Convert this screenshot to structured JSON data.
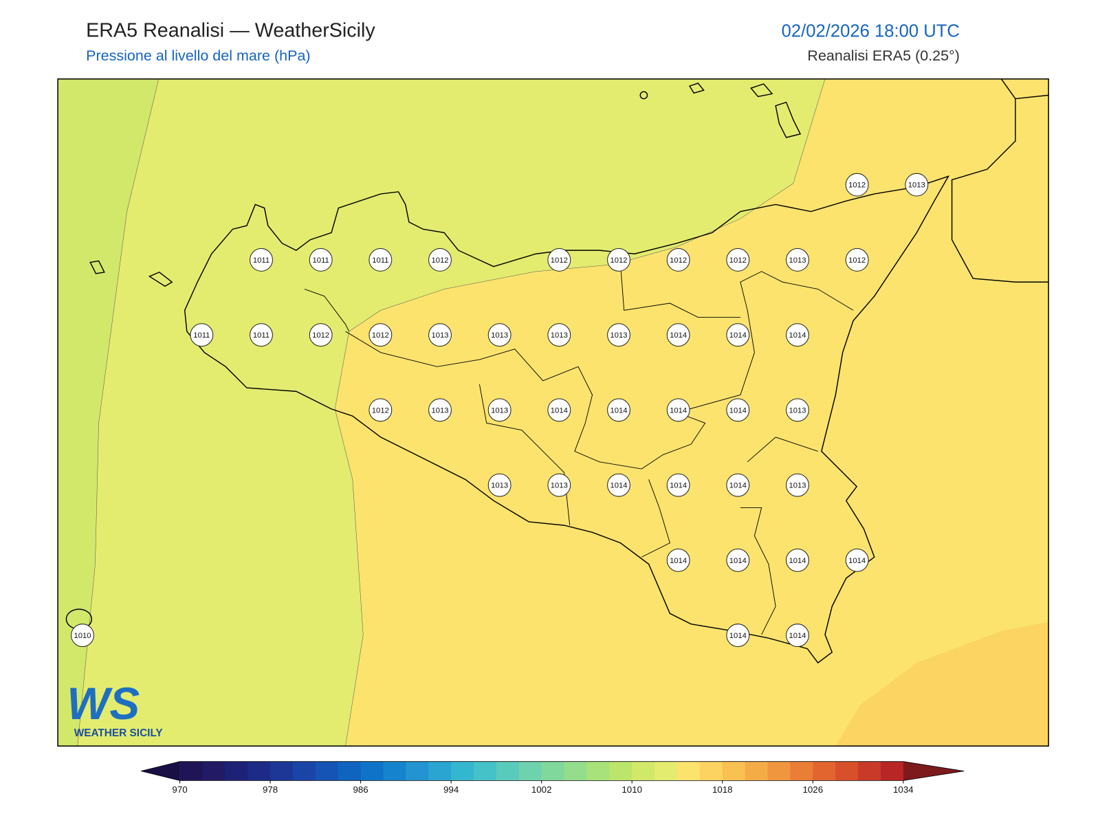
{
  "header": {
    "title": "ERA5 Reanalisi — WeatherSicily",
    "subtitle": "Pressione al livello del mare (hPa)",
    "datetime": "02/02/2026 18:00 UTC",
    "source": "Reanalisi ERA5 (0.25°)"
  },
  "logo": {
    "mark": "WS",
    "text": "WEATHER SICILY"
  },
  "stations": {
    "rows": [
      [
        null,
        null,
        null,
        null,
        null,
        null,
        null,
        null,
        null,
        null,
        null,
        null,
        null,
        1012,
        1013
      ],
      [
        null,
        null,
        null,
        1011,
        1011,
        1011,
        1012,
        null,
        1012,
        1012,
        1012,
        1012,
        1013,
        1012,
        null
      ],
      [
        null,
        null,
        1011,
        1011,
        1012,
        1012,
        1013,
        1013,
        1013,
        1013,
        1014,
        1014,
        1014,
        null,
        null
      ],
      [
        null,
        null,
        null,
        null,
        null,
        1012,
        1013,
        1013,
        1014,
        1014,
        1014,
        1014,
        1013,
        null,
        null
      ],
      [
        null,
        null,
        null,
        null,
        null,
        null,
        null,
        1013,
        1013,
        1014,
        1014,
        1014,
        1013,
        null,
        null
      ],
      [
        null,
        null,
        null,
        null,
        null,
        null,
        null,
        null,
        null,
        null,
        1014,
        1014,
        1014,
        1014,
        null
      ],
      [
        1010,
        null,
        null,
        null,
        null,
        null,
        null,
        null,
        null,
        null,
        null,
        1014,
        1014,
        null,
        null
      ]
    ]
  },
  "colorbar": {
    "vmin": 970,
    "vmax": 1034,
    "ticks": [
      970,
      978,
      986,
      994,
      1002,
      1010,
      1018,
      1026,
      1034
    ],
    "under": "#1a0f45",
    "over": "#7d1a1c",
    "colors": [
      "#1f1456",
      "#231a66",
      "#1e2276",
      "#1d2b86",
      "#1c3796",
      "#1a45a6",
      "#1553b4",
      "#1163c0",
      "#0f74c8",
      "#1584cc",
      "#2394cf",
      "#2aa5d2",
      "#35b6cf",
      "#45c2c8",
      "#58cbbc",
      "#6ed2ad",
      "#80d89c",
      "#94dd8b",
      "#a8e27a",
      "#bce56c",
      "#d1e868",
      "#e3ec6f",
      "#fbe36e",
      "#fcd361",
      "#f8c152",
      "#f4ac47",
      "#f0963e",
      "#ea7e36",
      "#e2652f",
      "#d8502a",
      "#c93a28",
      "#b82626"
    ]
  }
}
